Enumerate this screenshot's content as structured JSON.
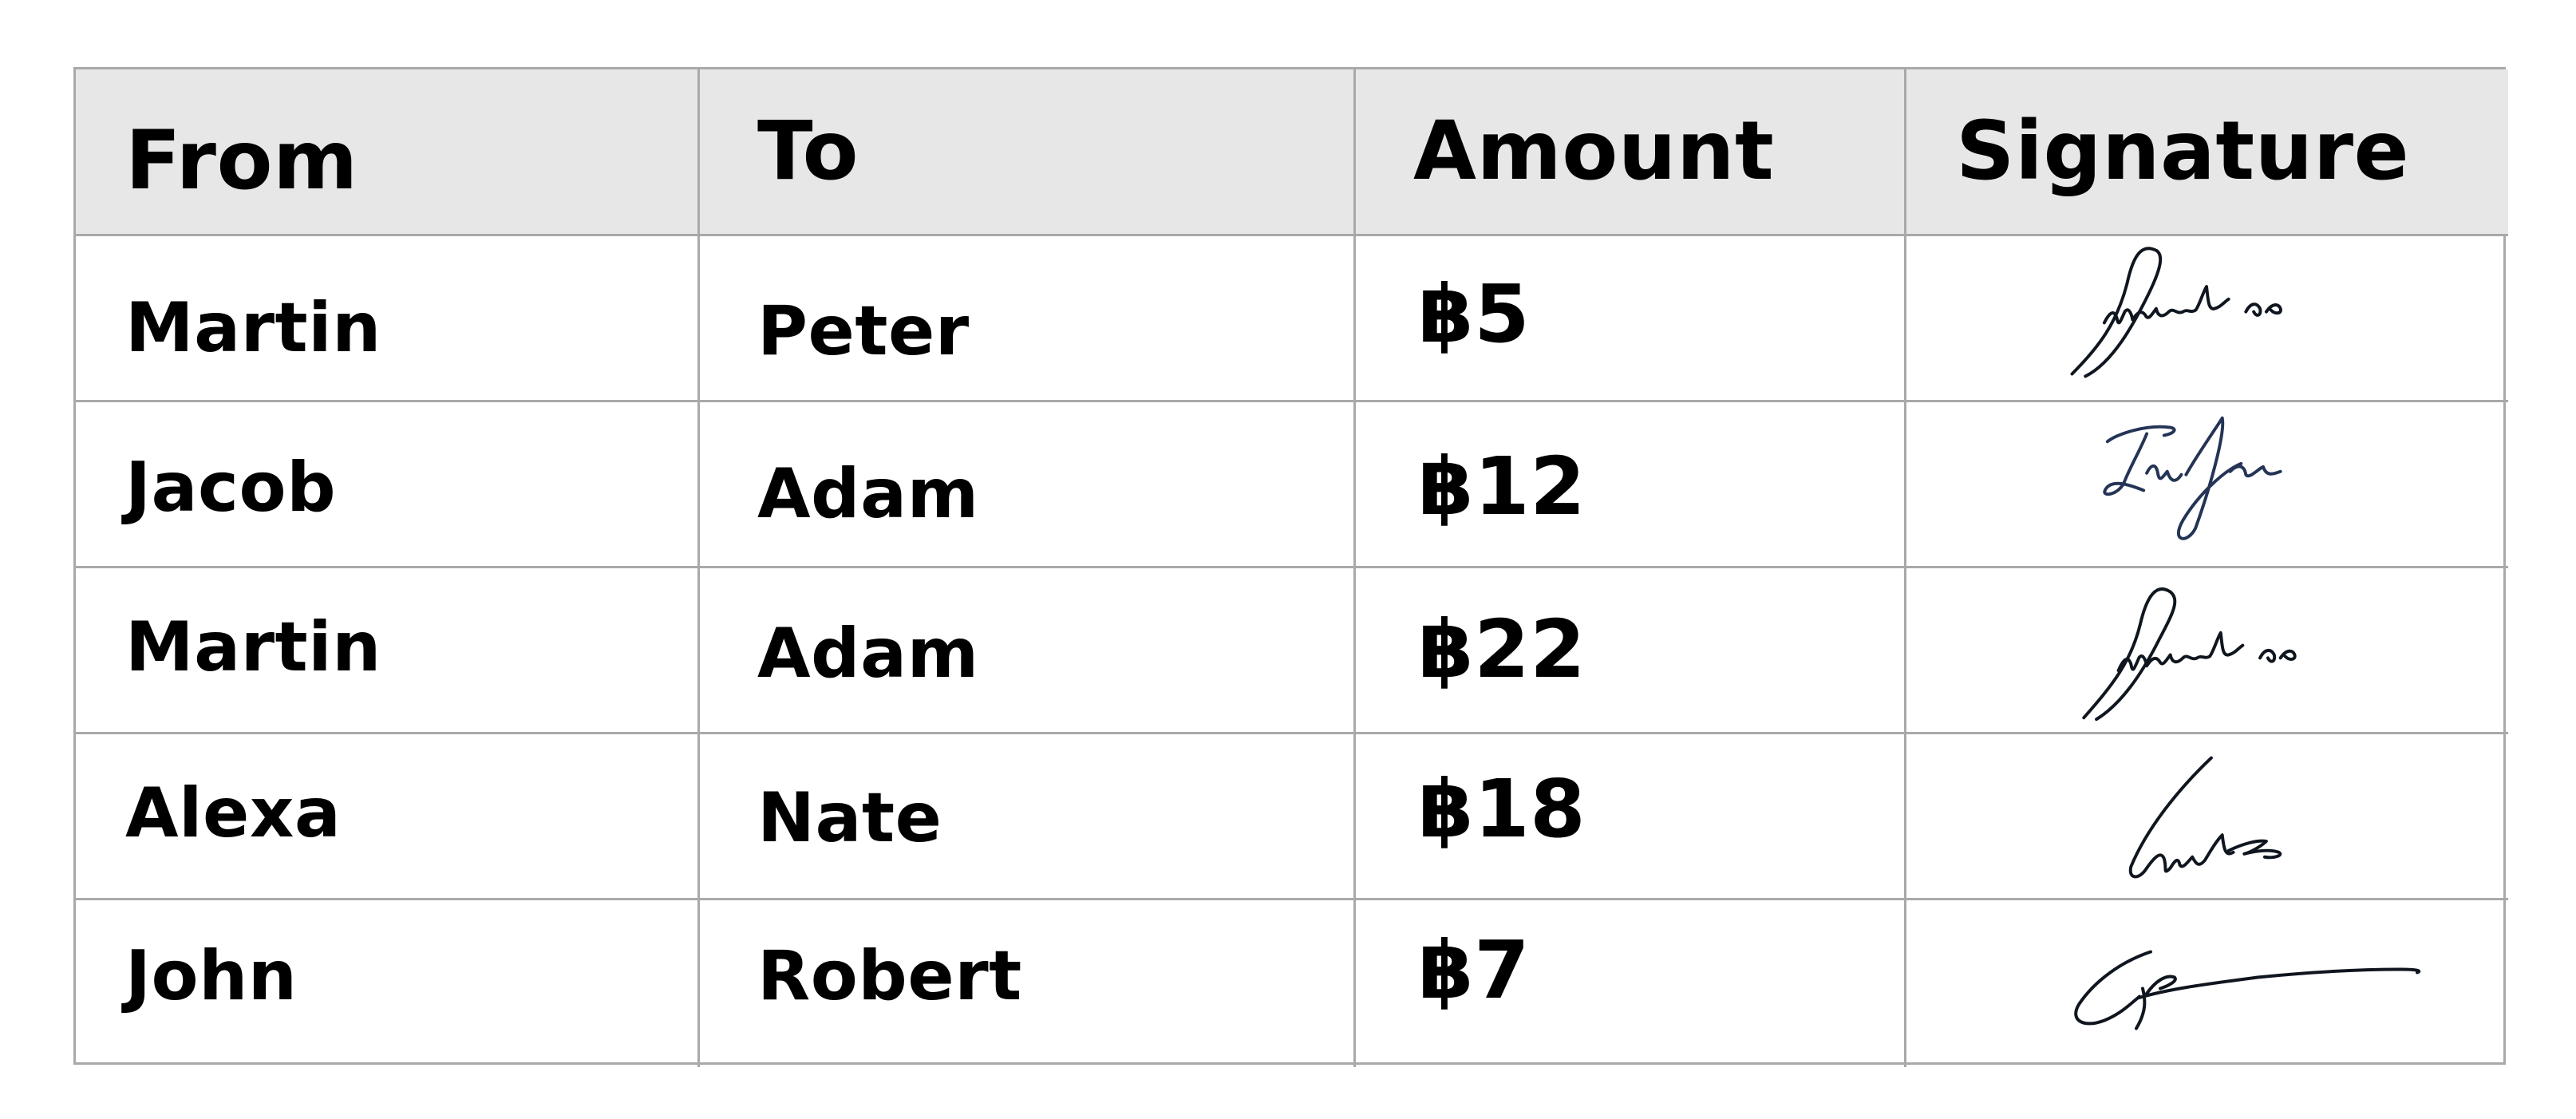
{
  "table": {
    "headers": {
      "from": "From",
      "to": "To",
      "amount": "Amount",
      "signature": "Signature"
    },
    "rows": [
      {
        "from": "Martin",
        "to": "Peter",
        "amount": "฿5"
      },
      {
        "from": "Jacob",
        "to": "Adam",
        "amount": "฿12"
      },
      {
        "from": "Martin",
        "to": "Adam",
        "amount": "฿22"
      },
      {
        "from": "Alexa",
        "to": "Nate",
        "amount": "฿18"
      },
      {
        "from": "John",
        "to": "Robert",
        "amount": "฿7"
      }
    ]
  },
  "colors": {
    "header_bg": "#e7e7e7",
    "grid_line": "#a9a9a9",
    "text": "#000000",
    "signature_ink": "#1a2433"
  }
}
